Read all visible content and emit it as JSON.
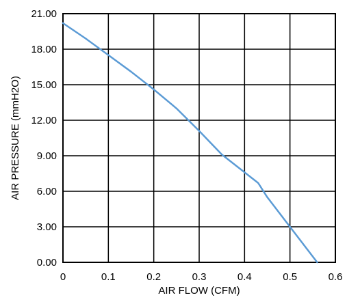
{
  "chart_data": {
    "type": "line",
    "xlabel": "AIR FLOW   (CFM)",
    "ylabel": "AIR PRESSURE   (mmH2O)",
    "xlim": [
      0,
      0.6
    ],
    "ylim": [
      0,
      21
    ],
    "x_ticks": [
      "0",
      "0.1",
      "0.2",
      "0.3",
      "0.4",
      "0.5",
      "0.6"
    ],
    "y_ticks": [
      "0.00",
      "3.00",
      "6.00",
      "9.00",
      "12.00",
      "15.00",
      "18.00",
      "21.00"
    ],
    "grid": true,
    "line_color": "#5b9bd5",
    "series": [
      {
        "x": [
          0,
          0.05,
          0.1,
          0.15,
          0.2,
          0.25,
          0.3,
          0.35,
          0.4,
          0.43,
          0.45,
          0.5,
          0.56
        ],
        "values": [
          20.2,
          18.9,
          17.5,
          16.1,
          14.6,
          13.0,
          11.1,
          9.1,
          7.6,
          6.7,
          5.5,
          3.0,
          0.0
        ]
      }
    ]
  }
}
